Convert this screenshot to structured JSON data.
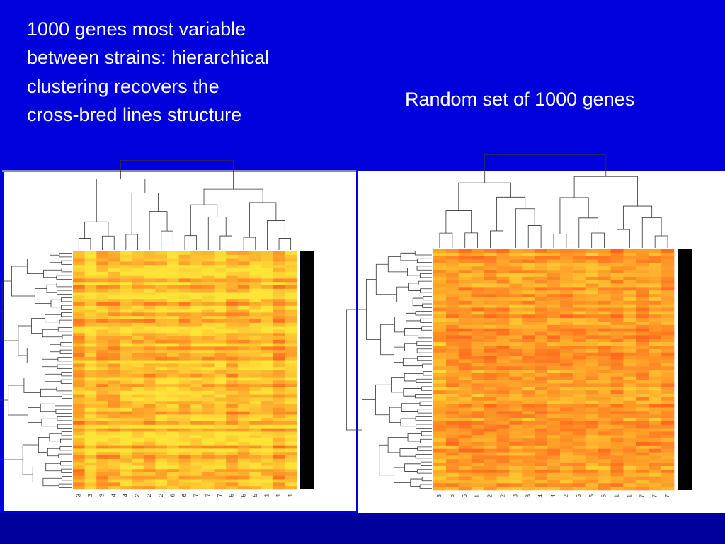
{
  "left_panel": {
    "title_lines": [
      "1000 genes most variable",
      "between strains: hierarchical",
      "clustering recovers the",
      "cross-bred lines structure"
    ],
    "column_labels": [
      "3",
      "3",
      "3",
      "4",
      "4",
      "2",
      "2",
      "2",
      "6",
      "6",
      "7",
      "7",
      "7",
      "5",
      "5",
      "5",
      "1",
      "1",
      "1"
    ]
  },
  "right_panel": {
    "title": "Random set of 1000 genes",
    "column_labels": [
      "3",
      "6",
      "6",
      "1",
      "2",
      "2",
      "3",
      "3",
      "4",
      "4",
      "2",
      "5",
      "5",
      "5",
      "1",
      "1",
      "7",
      "7",
      "7"
    ]
  }
}
